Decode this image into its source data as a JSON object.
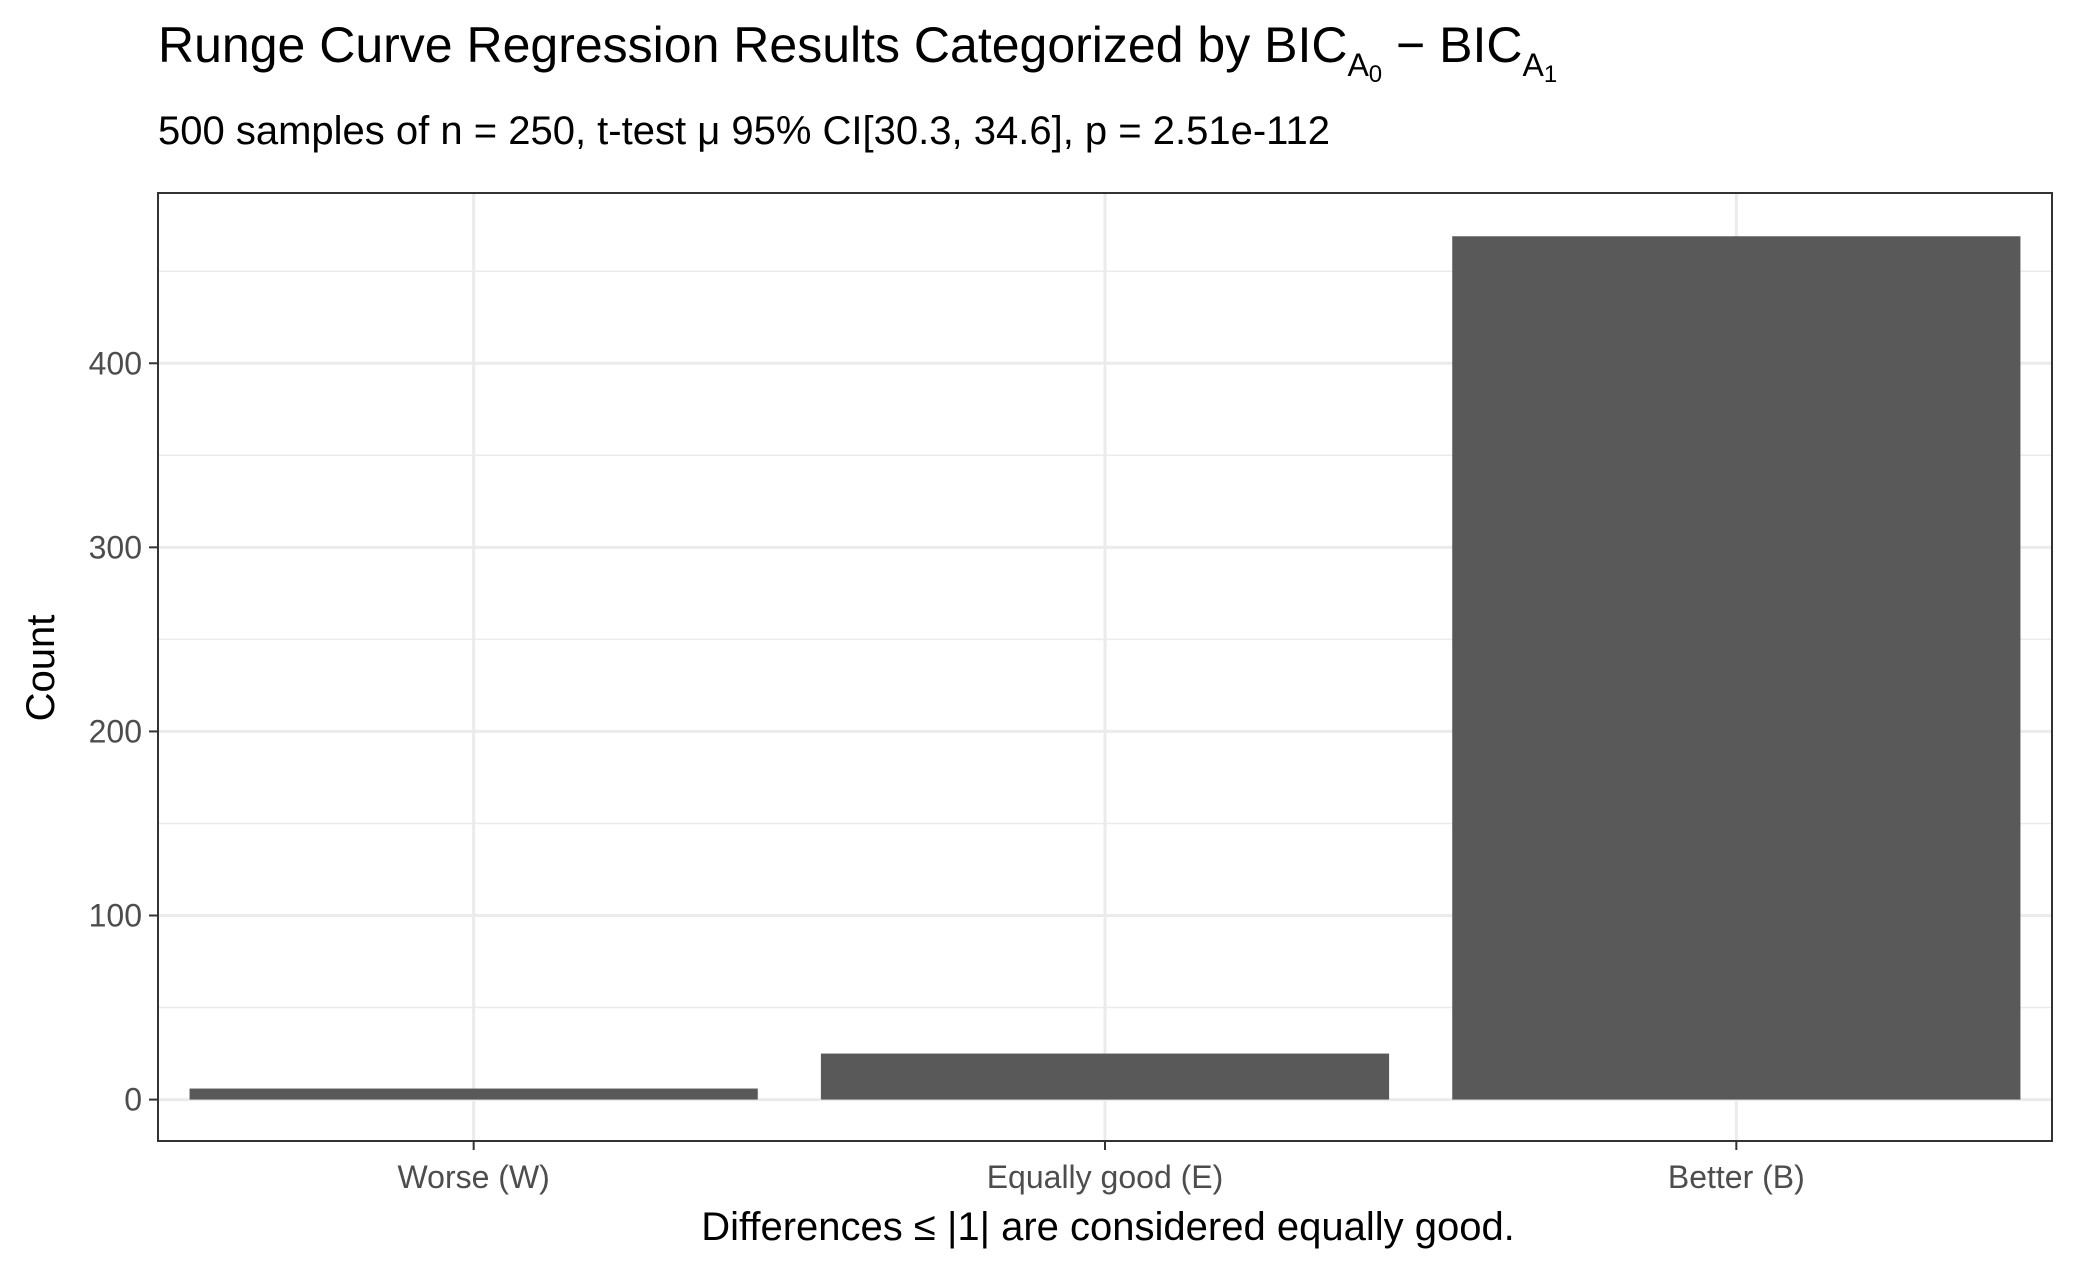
{
  "chart_data": {
    "type": "bar",
    "title": {
      "main": "Runge Curve Regression Results Categorized by BIC",
      "sub0": "A",
      "subsub0": "0",
      "minus": " − BIC",
      "sub1": "A",
      "subsub1": "1"
    },
    "subtitle": "500 samples of n = 250, t-test μ 95% CI[30.3, 34.6], p = 2.51e-112",
    "xlabel": "Differences ≤ |1| are considered equally good.",
    "ylabel": "Count",
    "categories": [
      "Worse (W)",
      "Equally good (E)",
      "Better (B)"
    ],
    "values": [
      6,
      25,
      469
    ],
    "ylim": [
      -22.5,
      492.5
    ],
    "yticks": [
      0,
      100,
      200,
      300,
      400
    ],
    "ytick_labels": [
      "0",
      "100",
      "200",
      "300",
      "400"
    ],
    "grid": true,
    "bar_color": "#595959",
    "panel_border_color": "#333333",
    "grid_color": "#ebebeb",
    "axis_text_color": "#4d4d4d"
  }
}
